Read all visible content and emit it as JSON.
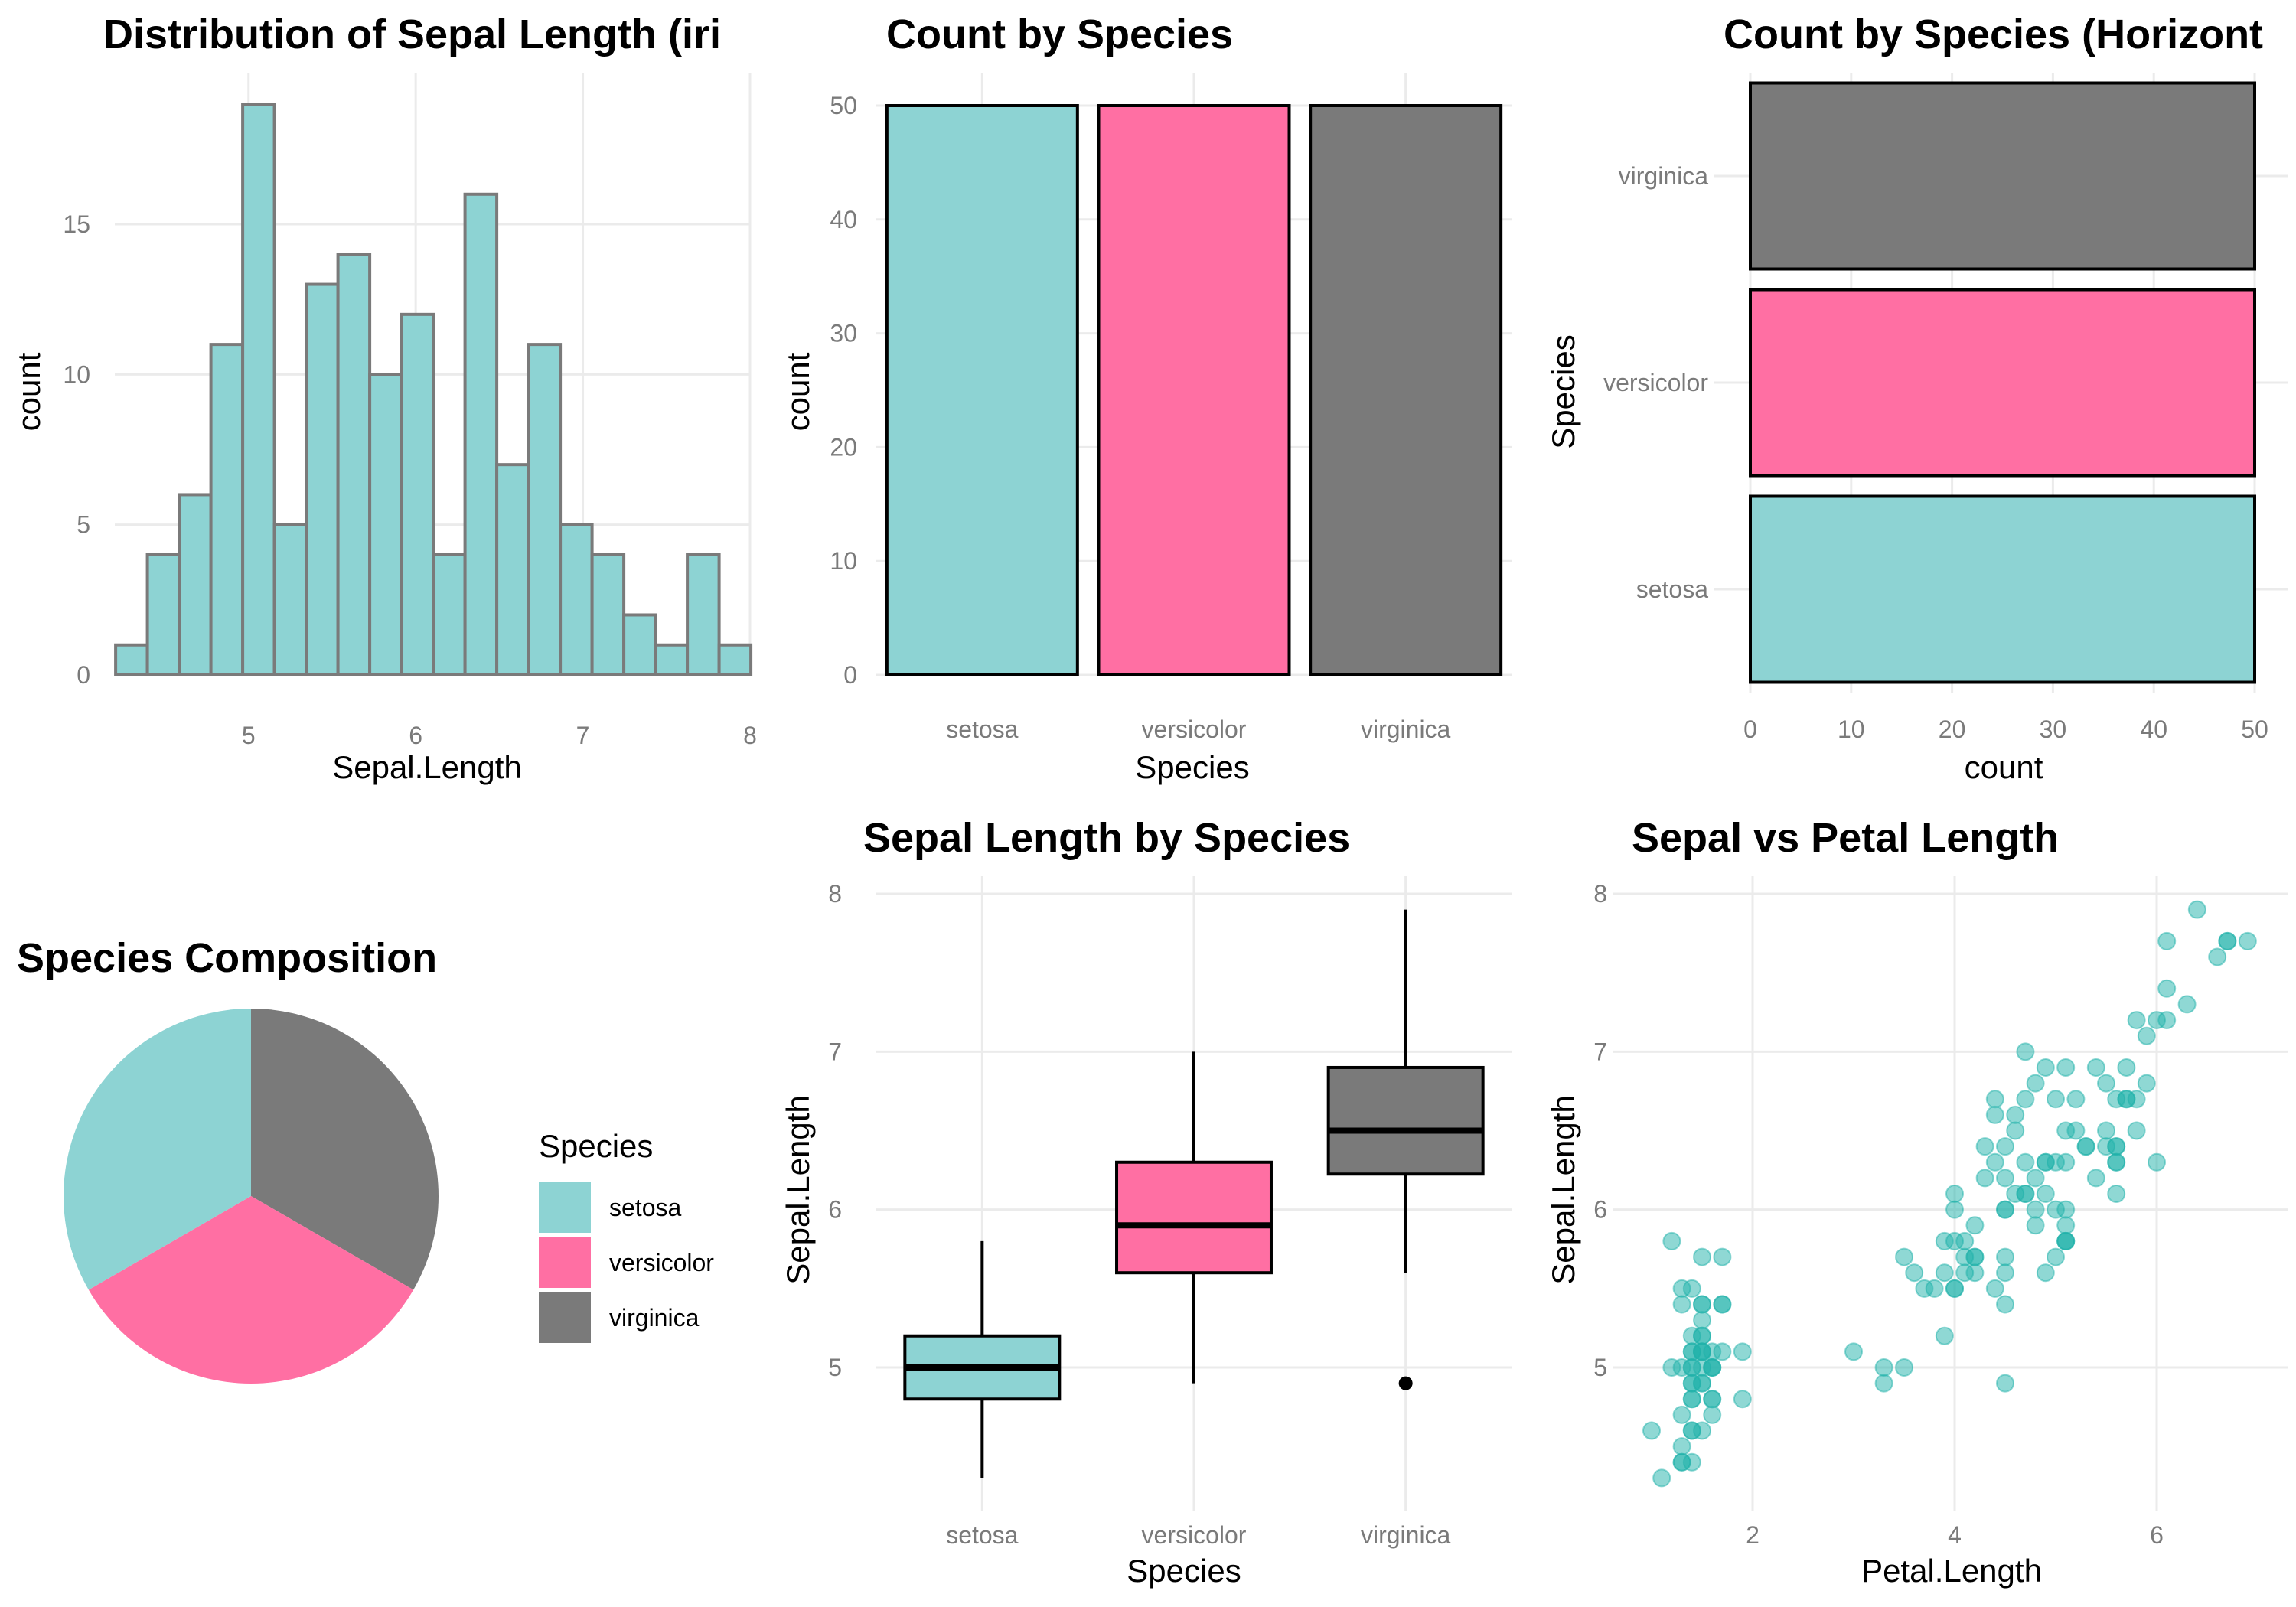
{
  "colors": {
    "setosa": "#8dd3d3",
    "versicolor": "#ff6fa3",
    "virginica": "#7a7a7a",
    "scatter_point": "#20b2aa",
    "grid": "#ebebeb",
    "tick_text": "#7a7a7a"
  },
  "chart_data": [
    {
      "type": "bar",
      "subtype": "histogram",
      "title": "Distribution of Sepal Length (iri",
      "xlabel": "Sepal.Length",
      "ylabel": "count",
      "bin_width": 0.19,
      "bin_centers": [
        4.3,
        4.49,
        4.68,
        4.87,
        5.06,
        5.25,
        5.44,
        5.63,
        5.82,
        6.01,
        6.2,
        6.39,
        6.58,
        6.77,
        6.96,
        7.15,
        7.34,
        7.53,
        7.72,
        7.91
      ],
      "values": [
        1,
        4,
        6,
        11,
        19,
        5,
        13,
        14,
        10,
        12,
        4,
        16,
        7,
        11,
        5,
        4,
        2,
        1,
        4,
        1
      ],
      "xlim": [
        4.2,
        8.0
      ],
      "ylim": [
        0,
        19
      ],
      "xticks": [
        "5",
        "6",
        "7",
        "8"
      ],
      "yticks": [
        "0",
        "5",
        "10",
        "15"
      ],
      "grid": true
    },
    {
      "type": "bar",
      "title": "Count by Species",
      "xlabel": "Species",
      "ylabel": "count",
      "categories": [
        "setosa",
        "versicolor",
        "virginica"
      ],
      "values": [
        50,
        50,
        50
      ],
      "ylim": [
        0,
        50
      ],
      "yticks": [
        "0",
        "10",
        "20",
        "30",
        "40",
        "50"
      ],
      "grid": true
    },
    {
      "type": "bar",
      "orientation": "horizontal",
      "title": "Count by Species (Horizont",
      "xlabel": "count",
      "ylabel": "Species",
      "categories": [
        "setosa",
        "versicolor",
        "virginica"
      ],
      "values": [
        50,
        50,
        50
      ],
      "xlim": [
        0,
        50
      ],
      "xticks": [
        "0",
        "10",
        "20",
        "30",
        "40",
        "50"
      ],
      "grid": true
    },
    {
      "type": "pie",
      "title": "Species Composition",
      "labels": [
        "setosa",
        "versicolor",
        "virginica"
      ],
      "values": [
        50,
        50,
        50
      ],
      "legend_title": "Species",
      "legend": "right"
    },
    {
      "type": "box",
      "title": "Sepal Length by Species",
      "xlabel": "Species",
      "ylabel": "Sepal.Length",
      "categories": [
        "setosa",
        "versicolor",
        "virginica"
      ],
      "boxes": [
        {
          "whisker_low": 4.3,
          "q1": 4.8,
          "median": 5.0,
          "q3": 5.2,
          "whisker_high": 5.8,
          "outliers": []
        },
        {
          "whisker_low": 4.9,
          "q1": 5.6,
          "median": 5.9,
          "q3": 6.3,
          "whisker_high": 7.0,
          "outliers": []
        },
        {
          "whisker_low": 5.6,
          "q1": 6.225,
          "median": 6.5,
          "q3": 6.9,
          "whisker_high": 7.9,
          "outliers": [
            4.9
          ]
        }
      ],
      "ylim": [
        4.2,
        8.0
      ],
      "yticks": [
        "5",
        "6",
        "7",
        "8"
      ],
      "grid": true
    },
    {
      "type": "scatter",
      "title": "Sepal vs Petal Length",
      "xlabel": "Petal.Length",
      "ylabel": "Sepal.Length",
      "xlim": [
        0.9,
        7.0
      ],
      "ylim": [
        4.2,
        8.0
      ],
      "xticks": [
        "2",
        "4",
        "6"
      ],
      "yticks": [
        "5",
        "6",
        "7",
        "8"
      ],
      "grid": true,
      "points": [
        [
          1.4,
          5.1
        ],
        [
          1.4,
          4.9
        ],
        [
          1.3,
          4.7
        ],
        [
          1.5,
          4.6
        ],
        [
          1.4,
          5.0
        ],
        [
          1.7,
          5.4
        ],
        [
          1.4,
          4.6
        ],
        [
          1.5,
          5.0
        ],
        [
          1.4,
          4.4
        ],
        [
          1.5,
          4.9
        ],
        [
          1.5,
          5.4
        ],
        [
          1.6,
          4.8
        ],
        [
          1.4,
          4.8
        ],
        [
          1.1,
          4.3
        ],
        [
          1.2,
          5.8
        ],
        [
          1.5,
          5.7
        ],
        [
          1.3,
          5.4
        ],
        [
          1.4,
          5.1
        ],
        [
          1.7,
          5.7
        ],
        [
          1.5,
          5.1
        ],
        [
          1.7,
          5.4
        ],
        [
          1.5,
          5.1
        ],
        [
          1.0,
          4.6
        ],
        [
          1.7,
          5.1
        ],
        [
          1.9,
          4.8
        ],
        [
          1.6,
          5.0
        ],
        [
          1.6,
          5.0
        ],
        [
          1.5,
          5.2
        ],
        [
          1.4,
          5.2
        ],
        [
          1.6,
          4.7
        ],
        [
          1.6,
          4.8
        ],
        [
          1.5,
          5.4
        ],
        [
          1.5,
          5.2
        ],
        [
          1.4,
          5.5
        ],
        [
          1.5,
          4.9
        ],
        [
          1.2,
          5.0
        ],
        [
          1.3,
          5.5
        ],
        [
          1.4,
          4.9
        ],
        [
          1.3,
          4.4
        ],
        [
          1.5,
          5.1
        ],
        [
          1.3,
          5.0
        ],
        [
          1.3,
          4.5
        ],
        [
          1.3,
          4.4
        ],
        [
          1.6,
          5.0
        ],
        [
          1.9,
          5.1
        ],
        [
          1.4,
          4.8
        ],
        [
          1.6,
          5.1
        ],
        [
          1.4,
          4.6
        ],
        [
          1.5,
          5.3
        ],
        [
          1.4,
          5.0
        ],
        [
          4.7,
          7.0
        ],
        [
          4.5,
          6.4
        ],
        [
          4.9,
          6.9
        ],
        [
          4.0,
          5.5
        ],
        [
          4.6,
          6.5
        ],
        [
          4.5,
          5.7
        ],
        [
          4.7,
          6.3
        ],
        [
          3.3,
          4.9
        ],
        [
          4.6,
          6.6
        ],
        [
          3.9,
          5.2
        ],
        [
          3.5,
          5.0
        ],
        [
          4.2,
          5.9
        ],
        [
          4.0,
          6.0
        ],
        [
          4.7,
          6.1
        ],
        [
          3.6,
          5.6
        ],
        [
          4.4,
          6.7
        ],
        [
          4.5,
          5.6
        ],
        [
          4.1,
          5.8
        ],
        [
          4.5,
          6.2
        ],
        [
          3.9,
          5.6
        ],
        [
          4.8,
          5.9
        ],
        [
          4.0,
          6.1
        ],
        [
          4.9,
          6.3
        ],
        [
          4.7,
          6.1
        ],
        [
          4.3,
          6.4
        ],
        [
          4.4,
          6.6
        ],
        [
          4.8,
          6.8
        ],
        [
          5.0,
          6.7
        ],
        [
          4.5,
          6.0
        ],
        [
          3.5,
          5.7
        ],
        [
          3.8,
          5.5
        ],
        [
          3.7,
          5.5
        ],
        [
          3.9,
          5.8
        ],
        [
          5.1,
          6.0
        ],
        [
          4.5,
          5.4
        ],
        [
          4.5,
          6.0
        ],
        [
          4.7,
          6.7
        ],
        [
          4.4,
          6.3
        ],
        [
          4.1,
          5.6
        ],
        [
          4.0,
          5.5
        ],
        [
          4.4,
          5.5
        ],
        [
          4.6,
          6.1
        ],
        [
          4.0,
          5.8
        ],
        [
          3.3,
          5.0
        ],
        [
          4.2,
          5.6
        ],
        [
          4.2,
          5.7
        ],
        [
          4.2,
          5.7
        ],
        [
          4.3,
          6.2
        ],
        [
          3.0,
          5.1
        ],
        [
          4.1,
          5.7
        ],
        [
          6.0,
          6.3
        ],
        [
          5.1,
          5.8
        ],
        [
          5.9,
          7.1
        ],
        [
          5.6,
          6.3
        ],
        [
          5.8,
          6.5
        ],
        [
          6.6,
          7.6
        ],
        [
          4.5,
          4.9
        ],
        [
          6.3,
          7.3
        ],
        [
          5.8,
          6.7
        ],
        [
          6.1,
          7.2
        ],
        [
          5.1,
          6.5
        ],
        [
          5.3,
          6.4
        ],
        [
          5.5,
          6.8
        ],
        [
          5.0,
          5.7
        ],
        [
          5.1,
          5.8
        ],
        [
          5.3,
          6.4
        ],
        [
          5.5,
          6.5
        ],
        [
          6.7,
          7.7
        ],
        [
          6.9,
          7.7
        ],
        [
          5.0,
          6.0
        ],
        [
          5.7,
          6.9
        ],
        [
          4.9,
          5.6
        ],
        [
          6.7,
          7.7
        ],
        [
          4.9,
          6.3
        ],
        [
          5.7,
          6.7
        ],
        [
          6.0,
          7.2
        ],
        [
          4.8,
          6.2
        ],
        [
          4.9,
          6.1
        ],
        [
          5.6,
          6.4
        ],
        [
          5.8,
          7.2
        ],
        [
          6.1,
          7.4
        ],
        [
          6.4,
          7.9
        ],
        [
          5.6,
          6.4
        ],
        [
          5.1,
          6.3
        ],
        [
          5.6,
          6.1
        ],
        [
          6.1,
          7.7
        ],
        [
          5.6,
          6.3
        ],
        [
          5.5,
          6.4
        ],
        [
          4.8,
          6.0
        ],
        [
          5.4,
          6.9
        ],
        [
          5.6,
          6.7
        ],
        [
          5.1,
          6.9
        ],
        [
          5.1,
          5.8
        ],
        [
          5.9,
          6.8
        ],
        [
          5.7,
          6.7
        ],
        [
          5.2,
          6.7
        ],
        [
          5.0,
          6.3
        ],
        [
          5.2,
          6.5
        ],
        [
          5.4,
          6.2
        ],
        [
          5.1,
          5.9
        ]
      ]
    }
  ]
}
